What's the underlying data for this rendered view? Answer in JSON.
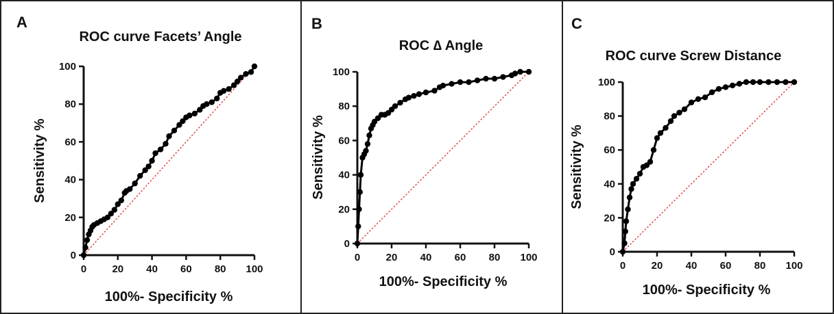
{
  "chart_data": [
    {
      "type": "line",
      "panel": "A",
      "title": "ROC curve Facets’ Angle",
      "xlabel": "100%- Specificity %",
      "ylabel": "Sensitivity %",
      "xlim": [
        0,
        100
      ],
      "ylim": [
        0,
        100
      ],
      "xticks": [
        "0",
        "20",
        "40",
        "60",
        "80",
        "100"
      ],
      "yticks": [
        "0",
        "20",
        "40",
        "60",
        "80",
        "100"
      ],
      "reference_line": [
        [
          0,
          0
        ],
        [
          100,
          100
        ]
      ],
      "colors": {
        "curve": "#000000",
        "reference": "#e05050"
      },
      "series": [
        {
          "x": [
            0,
            1,
            2,
            3,
            4,
            5,
            6,
            8,
            10,
            12,
            14,
            16,
            18,
            20,
            22,
            24,
            25,
            27,
            30,
            33,
            36,
            38,
            40,
            42,
            45,
            48,
            50,
            53,
            56,
            58,
            60,
            62,
            65,
            68,
            70,
            72,
            75,
            78,
            80,
            82,
            85,
            88,
            90,
            92,
            95,
            98,
            100
          ],
          "y": [
            0,
            4,
            8,
            11,
            13,
            15,
            16,
            17,
            18,
            19,
            20,
            22,
            24,
            27,
            29,
            33,
            34,
            35,
            38,
            42,
            45,
            47,
            50,
            54,
            56,
            59,
            63,
            66,
            69,
            71,
            73,
            74,
            75,
            77,
            79,
            80,
            81,
            83,
            86,
            87,
            88,
            90,
            92,
            94,
            96,
            97,
            100
          ]
        }
      ]
    },
    {
      "type": "line",
      "panel": "B",
      "title": "ROC ∆ Angle",
      "xlabel": "100%- Specificity %",
      "ylabel": "Sensitivity %",
      "xlim": [
        0,
        100
      ],
      "ylim": [
        0,
        100
      ],
      "xticks": [
        "0",
        "20",
        "40",
        "60",
        "80",
        "100"
      ],
      "yticks": [
        "0",
        "20",
        "40",
        "60",
        "80",
        "100"
      ],
      "reference_line": [
        [
          0,
          0
        ],
        [
          100,
          100
        ]
      ],
      "colors": {
        "curve": "#000000",
        "reference": "#e05050"
      },
      "series": [
        {
          "x": [
            0,
            0.5,
            1,
            1.5,
            2,
            3,
            4,
            5,
            6,
            7,
            8,
            9,
            10,
            12,
            14,
            16,
            18,
            20,
            22,
            25,
            28,
            30,
            33,
            36,
            40,
            45,
            48,
            50,
            55,
            60,
            65,
            70,
            75,
            80,
            85,
            90,
            92,
            95,
            100
          ],
          "y": [
            0,
            10,
            20,
            30,
            40,
            50,
            52,
            54,
            58,
            63,
            67,
            69,
            71,
            73,
            75,
            75,
            76,
            78,
            80,
            82,
            84,
            85,
            86,
            87,
            88,
            89,
            91,
            92,
            93,
            94,
            94,
            95,
            96,
            96,
            97,
            98,
            99,
            100,
            100
          ]
        }
      ]
    },
    {
      "type": "line",
      "panel": "C",
      "title": "ROC curve Screw Distance",
      "xlabel": "100%- Specificity %",
      "ylabel": "Sensitivity %",
      "xlim": [
        0,
        100
      ],
      "ylim": [
        0,
        100
      ],
      "xticks": [
        "0",
        "20",
        "40",
        "60",
        "80",
        "100"
      ],
      "yticks": [
        "0",
        "20",
        "40",
        "60",
        "80",
        "100"
      ],
      "reference_line": [
        [
          0,
          0
        ],
        [
          100,
          100
        ]
      ],
      "colors": {
        "curve": "#000000",
        "reference": "#e05050"
      },
      "series": [
        {
          "x": [
            0,
            1,
            1.5,
            2,
            3,
            4,
            5,
            6,
            8,
            10,
            12,
            14,
            16,
            18,
            20,
            22,
            25,
            28,
            30,
            33,
            36,
            40,
            44,
            48,
            52,
            56,
            60,
            64,
            68,
            72,
            76,
            80,
            85,
            90,
            95,
            100
          ],
          "y": [
            0,
            5,
            12,
            18,
            25,
            32,
            37,
            40,
            43,
            46,
            50,
            51,
            53,
            60,
            67,
            70,
            73,
            77,
            80,
            82,
            84,
            88,
            90,
            91,
            94,
            96,
            97,
            98,
            99,
            100,
            100,
            100,
            100,
            100,
            100,
            100
          ]
        }
      ]
    }
  ]
}
